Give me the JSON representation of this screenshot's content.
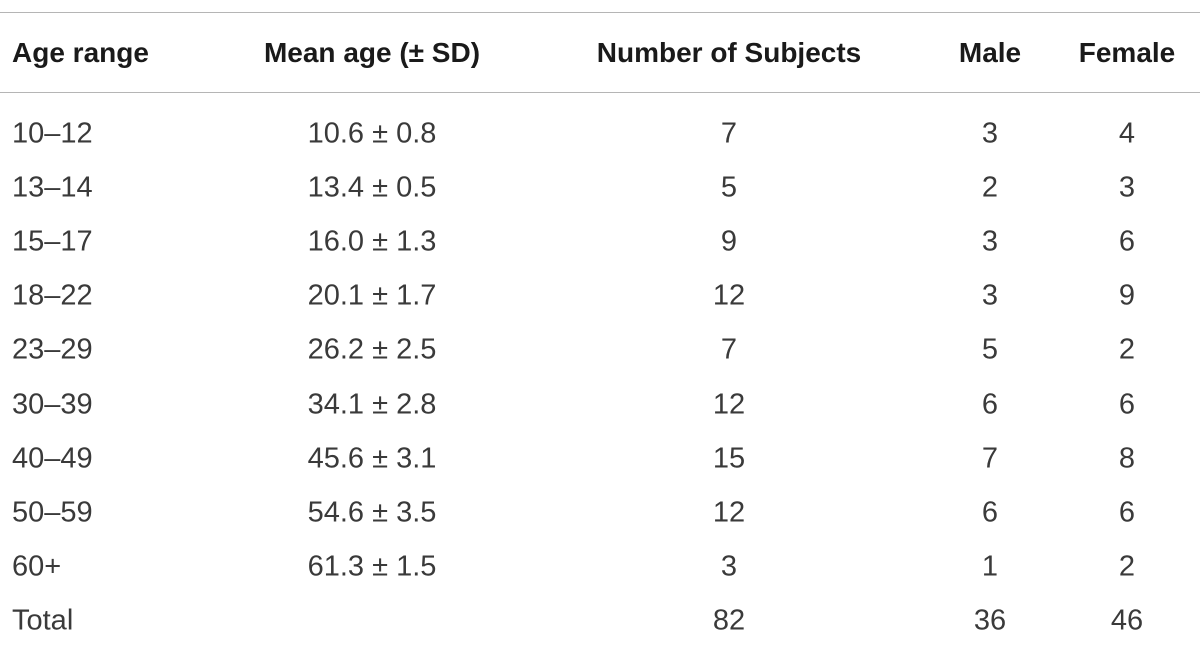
{
  "table": {
    "header": [
      "Age range",
      "Mean age (± SD)",
      "Number of Subjects",
      "Male",
      "Female"
    ],
    "rows": [
      [
        "10–12",
        "10.6 ± 0.8",
        7,
        3,
        4
      ],
      [
        "13–14",
        "13.4 ± 0.5",
        5,
        2,
        3
      ],
      [
        "15–17",
        "16.0 ± 1.3",
        9,
        3,
        6
      ],
      [
        "18–22",
        "20.1 ± 1.7",
        12,
        3,
        9
      ],
      [
        "23–29",
        "26.2 ± 2.5",
        7,
        5,
        2
      ],
      [
        "30–39",
        "34.1 ± 2.8",
        12,
        6,
        6
      ],
      [
        "40–49",
        "45.6 ± 3.1",
        15,
        7,
        8
      ],
      [
        "50–59",
        "54.6 ± 3.5",
        12,
        6,
        6
      ],
      [
        "60+",
        "61.3 ± 1.5",
        3,
        1,
        2
      ]
    ],
    "total": {
      "label": "Total",
      "subjects": 82,
      "male": 36,
      "female": 46
    }
  }
}
